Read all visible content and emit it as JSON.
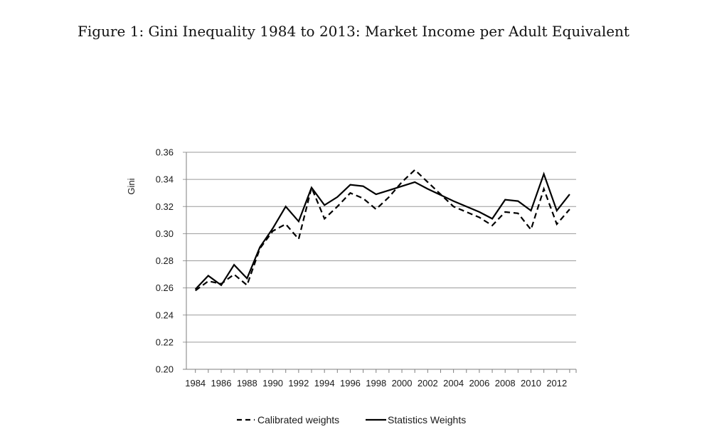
{
  "caption": "Figure 1: Gini Inequality 1984 to 2013: Market Income per Adult Equivalent",
  "chart_data": {
    "type": "line",
    "title": "",
    "xlabel": "",
    "ylabel": "Gini",
    "ylim": [
      0.2,
      0.36
    ],
    "yticks": [
      "0.20",
      "0.22",
      "0.24",
      "0.26",
      "0.28",
      "0.30",
      "0.32",
      "0.34",
      "0.36"
    ],
    "xlim": [
      1983.3,
      2013.5
    ],
    "xticks": [
      "1984",
      "1986",
      "1988",
      "1990",
      "1992",
      "1994",
      "1996",
      "1998",
      "2000",
      "2002",
      "2004",
      "2006",
      "2008",
      "2010",
      "2012"
    ],
    "grid": "horizontal",
    "legend_position": "bottom",
    "series": [
      {
        "name": "Calibrated weights",
        "style": "dashed",
        "color": "#000000",
        "x": [
          1984,
          1985,
          1986,
          1987,
          1988,
          1989,
          1990,
          1991,
          1992,
          1993,
          1994,
          1995,
          1996,
          1997,
          1998,
          1999,
          2000,
          2001,
          2002,
          2003,
          2004,
          2005,
          2006,
          2007,
          2008,
          2009,
          2010,
          2011,
          2012,
          2013
        ],
        "values": [
          0.258,
          0.265,
          0.263,
          0.27,
          0.262,
          0.289,
          0.302,
          0.307,
          0.296,
          0.334,
          0.311,
          0.32,
          0.33,
          0.326,
          0.318,
          0.327,
          0.338,
          0.347,
          0.338,
          0.329,
          0.32,
          0.316,
          0.312,
          0.306,
          0.316,
          0.315,
          0.303,
          0.333,
          0.307,
          0.318
        ]
      },
      {
        "name": "Statistics Weights",
        "style": "solid",
        "color": "#000000",
        "x": [
          1984,
          1985,
          1986,
          1987,
          1988,
          1989,
          1990,
          1991,
          1992,
          1993,
          1994,
          1995,
          1996,
          1997,
          1998,
          1999,
          2000,
          2001,
          2002,
          2004,
          2006,
          2007,
          2008,
          2009,
          2010,
          2011,
          2012,
          2013
        ],
        "values": [
          0.259,
          0.269,
          0.262,
          0.277,
          0.267,
          0.29,
          0.304,
          0.32,
          0.309,
          0.334,
          0.321,
          0.327,
          0.336,
          0.335,
          0.329,
          0.332,
          0.335,
          0.338,
          0.333,
          0.324,
          0.316,
          0.311,
          0.325,
          0.324,
          0.317,
          0.344,
          0.317,
          0.329
        ]
      }
    ]
  }
}
